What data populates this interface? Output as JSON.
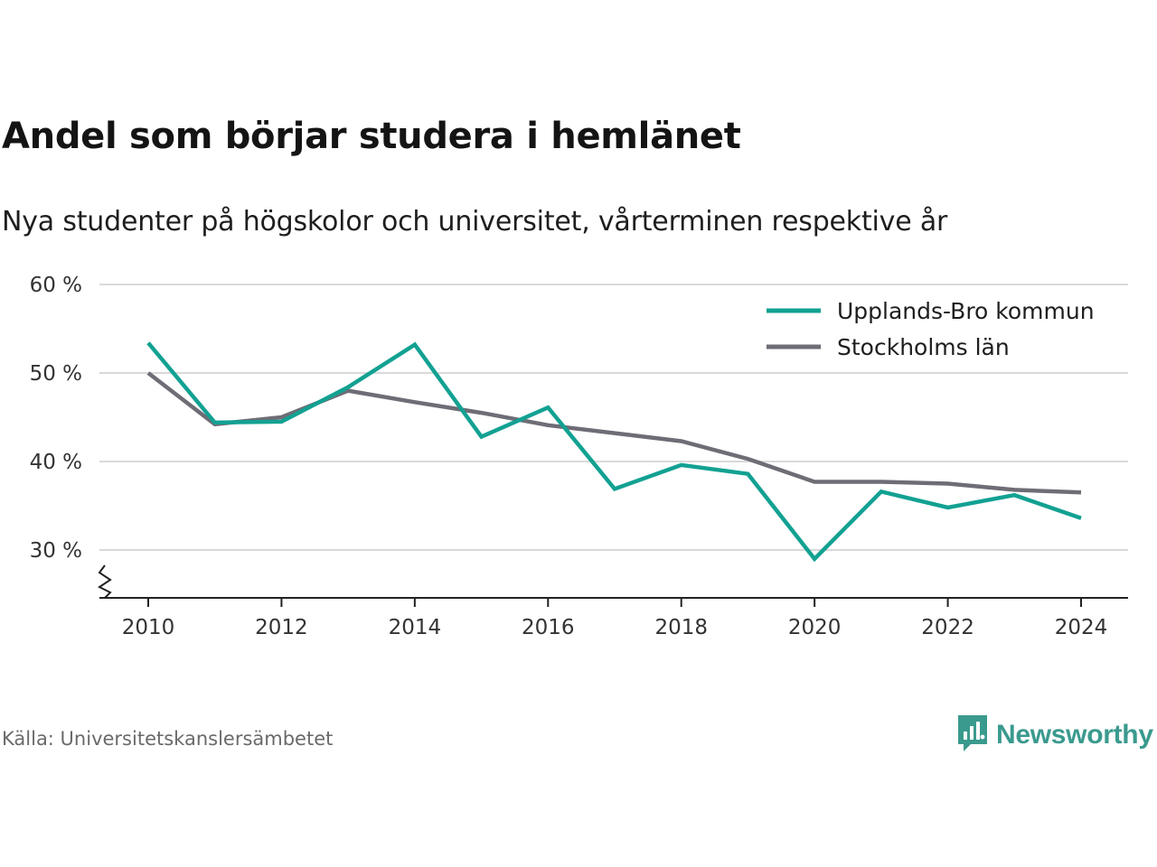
{
  "title": "Andel som börjar studera i hemlänet",
  "subtitle": "Nya studenter på högskolor och universitet, vårterminen respektive år",
  "source": "Källa: Universitetskanslersämbetet",
  "brand": "Newsworthy",
  "colors": {
    "upplands": "#12a192",
    "stockholm": "#6e6d76",
    "grid": "#d9d9d9",
    "axis": "#222222",
    "brand": "#3a9a8e"
  },
  "chart_data": {
    "type": "line",
    "x": [
      2010,
      2011,
      2012,
      2013,
      2014,
      2015,
      2016,
      2017,
      2018,
      2019,
      2020,
      2021,
      2022,
      2023,
      2024
    ],
    "series": [
      {
        "name": "Upplands-Bro kommun",
        "color": "#12a192",
        "values": [
          53.4,
          44.4,
          44.5,
          48.4,
          53.2,
          42.8,
          46.1,
          36.9,
          39.6,
          38.6,
          29.0,
          36.6,
          34.8,
          36.2,
          33.6
        ]
      },
      {
        "name": "Stockholms län",
        "color": "#6e6d76",
        "values": [
          50.0,
          44.2,
          45.0,
          48.0,
          46.7,
          45.5,
          44.1,
          43.2,
          42.3,
          40.3,
          37.7,
          37.7,
          37.5,
          36.8,
          36.5
        ]
      }
    ],
    "ylim": [
      25,
      60
    ],
    "yticks": [
      30,
      40,
      50,
      60
    ],
    "ytick_labels": [
      "30 %",
      "40 %",
      "50 %",
      "60 %"
    ],
    "xticks": [
      2010,
      2012,
      2014,
      2016,
      2018,
      2020,
      2022,
      2024
    ],
    "xtick_labels": [
      "2010",
      "2012",
      "2014",
      "2016",
      "2018",
      "2020",
      "2022",
      "2024"
    ],
    "xlabel": "",
    "ylabel": "",
    "grid": true,
    "legend": "top-right",
    "axis_break": true
  }
}
